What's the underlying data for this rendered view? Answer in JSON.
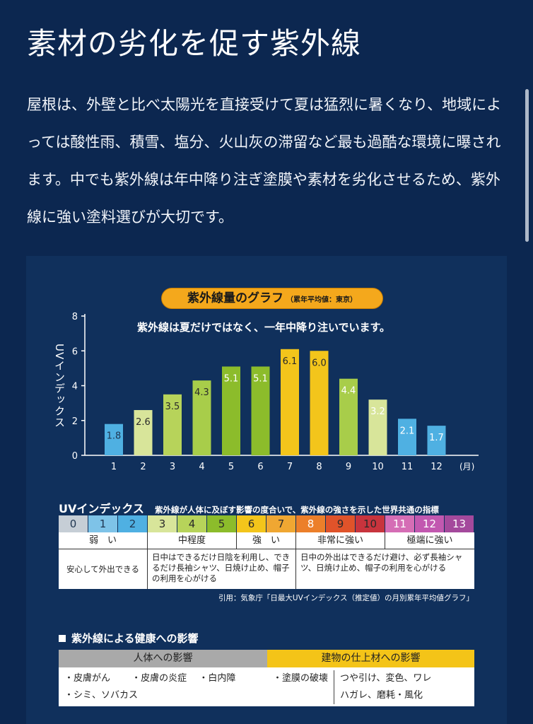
{
  "title": "素材の劣化を促す紫外線",
  "intro": "屋根は、外壁と比べ太陽光を直接受けて夏は猛烈に暑くなり、地域によっては酸性雨、積雪、塩分、火山灰の滞留など最も過酷な環境に曝されます。中でも紫外線は年中降り注ぎ塗膜や素材を劣化させるため、紫外線に強い塗料選びが大切です。",
  "chart_data": {
    "type": "bar",
    "title": "紫外線量のグラフ",
    "title_note": "（累年平均値：東京）",
    "subtitle": "紫外線は夏だけではなく、一年中降り注いでいます。",
    "ylabel": "UVインデックス",
    "xlabel": "(月)",
    "ylim": [
      0,
      8
    ],
    "yticks": [
      0,
      2,
      4,
      6,
      8
    ],
    "categories": [
      "1",
      "2",
      "3",
      "4",
      "5",
      "6",
      "7",
      "8",
      "9",
      "10",
      "11",
      "12"
    ],
    "values": [
      1.8,
      2.6,
      3.5,
      4.3,
      5.1,
      5.1,
      6.1,
      6.0,
      4.4,
      3.2,
      2.1,
      1.7
    ],
    "colors": [
      "#4fb0e2",
      "#d8e59a",
      "#b7d35a",
      "#a8cd4a",
      "#8cbc2b",
      "#8cbc2b",
      "#f3c51b",
      "#f3c51b",
      "#a8cd4a",
      "#d8e59a",
      "#4fb0e2",
      "#4fb0e2"
    ],
    "label_colors": [
      "#1f3550",
      "#2a2a2a",
      "#2a2a2a",
      "#2a2a2a",
      "#ffffff",
      "#ffffff",
      "#2a2a2a",
      "#2a2a2a",
      "#ffffff",
      "#ffffff",
      "#ffffff",
      "#ffffff"
    ]
  },
  "uv_index": {
    "title": "UVインデックス",
    "description": "紫外線が人体に及ぼす影響の度合いで、紫外線の強さを示した世界共通の指標",
    "scale": [
      {
        "v": "0",
        "bg": "#c6ced6",
        "fg": "#1f3550"
      },
      {
        "v": "1",
        "bg": "#7ec3e8",
        "fg": "#1f3550"
      },
      {
        "v": "2",
        "bg": "#4fb0e2",
        "fg": "#1f3550"
      },
      {
        "v": "3",
        "bg": "#d8e59a",
        "fg": "#2a2a2a"
      },
      {
        "v": "4",
        "bg": "#b7d35a",
        "fg": "#2a2a2a"
      },
      {
        "v": "5",
        "bg": "#8cbc2b",
        "fg": "#2a2a2a"
      },
      {
        "v": "6",
        "bg": "#f3c51b",
        "fg": "#2a2a2a"
      },
      {
        "v": "7",
        "bg": "#f0a732",
        "fg": "#2a2a2a"
      },
      {
        "v": "8",
        "bg": "#ec7f2a",
        "fg": "#ffffff"
      },
      {
        "v": "9",
        "bg": "#e0532a",
        "fg": "#2a2a2a"
      },
      {
        "v": "10",
        "bg": "#c8343d",
        "fg": "#2a2a2a"
      },
      {
        "v": "11",
        "bg": "#d56db5",
        "fg": "#ffffff"
      },
      {
        "v": "12",
        "bg": "#c258b0",
        "fg": "#ffffff"
      },
      {
        "v": "13",
        "bg": "#a4499c",
        "fg": "#ffffff"
      }
    ],
    "categories": [
      "弱　い",
      "中程度",
      "強　い",
      "非常に強い",
      "極端に強い"
    ],
    "advice": [
      "安心して外出できる",
      "日中はできるだけ日陰を利用し、できるだけ長袖シャツ、日焼け止め、帽子の利用を心がける",
      "日中の外出はできるだけ避け、必ず長袖シャツ、日焼け止め、帽子の利用を心がける"
    ],
    "citation": "引用：気象庁「日最大UVインデックス（推定値）の月別累年平均値グラフ」"
  },
  "health": {
    "title": "紫外線による健康への影響",
    "human_header": "人体への影響",
    "human_items": [
      "・皮膚がん",
      "・皮膚の炎症",
      "・白内障",
      "・シミ、ソバカス"
    ],
    "building_header": "建物の仕上材への影響",
    "building_lead": "・塗膜の破壊",
    "building_items": [
      "つや引け、変色、ワレ",
      "ハガレ、磨耗・風化"
    ]
  }
}
